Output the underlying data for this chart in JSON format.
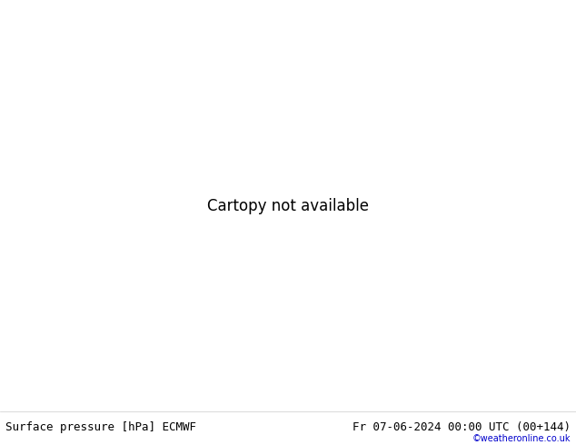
{
  "title_left": "Surface pressure [hPa] ECMWF",
  "title_right": "Fr 07-06-2024 00:00 UTC (00+144)",
  "copyright": "©weatheronline.co.uk",
  "ocean_color": "#d4d4d4",
  "land_color": "#c8ecc8",
  "coast_color": "#888888",
  "fig_width": 6.34,
  "fig_height": 4.9,
  "dpi": 100,
  "lon_min": -12,
  "lon_max": 18,
  "lat_min": 44,
  "lat_max": 62,
  "font_size_title": 9,
  "font_size_isobar": 8,
  "font_size_copyright": 7,
  "isobar_1004_color": "#0000ff",
  "isobar_1008_color": "#0000ff",
  "isobar_1012_color": "#0000ff",
  "isobar_1013_color": "#000000",
  "isobar_1016_color": "#ff0000",
  "isobar_1020_color": "#ff0000"
}
